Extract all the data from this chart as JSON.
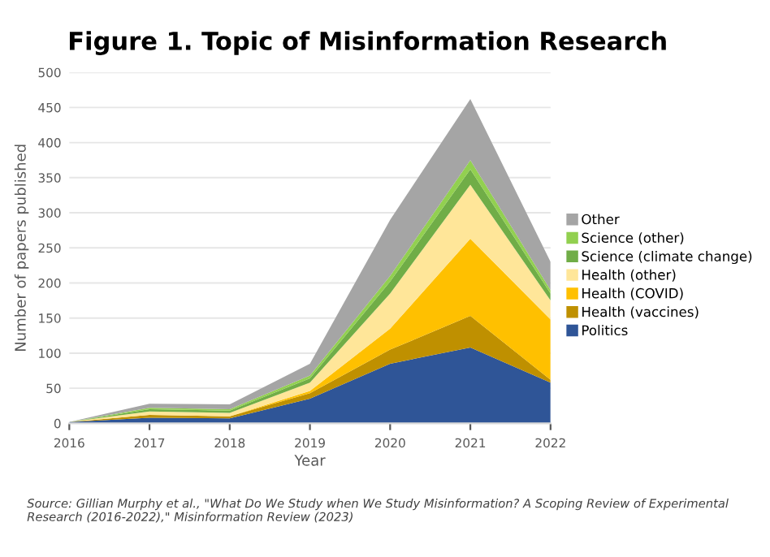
{
  "chart_data": {
    "type": "area",
    "stacked": true,
    "title": "Figure 1. Topic of Misinformation Research",
    "xlabel": "Year",
    "ylabel": "Number of papers published",
    "x": [
      2016,
      2017,
      2018,
      2019,
      2020,
      2021,
      2022
    ],
    "xlim": [
      2016,
      2022
    ],
    "xticks": [
      2016,
      2017,
      2018,
      2019,
      2020,
      2021,
      2022
    ],
    "ylim": [
      0,
      500
    ],
    "yticks": [
      0,
      50,
      100,
      150,
      200,
      250,
      300,
      350,
      400,
      450,
      500
    ],
    "grid": "y",
    "legend": "right",
    "series": [
      {
        "name": "Politics",
        "color": "#2f5597",
        "values": [
          2,
          8,
          7,
          35,
          85,
          108,
          58
        ]
      },
      {
        "name": "Health (vaccines)",
        "color": "#bf9000",
        "values": [
          0,
          4,
          3,
          8,
          20,
          45,
          4
        ]
      },
      {
        "name": "Health (COVID)",
        "color": "#ffc000",
        "values": [
          0,
          0,
          0,
          3,
          30,
          110,
          86
        ]
      },
      {
        "name": "Health (other)",
        "color": "#ffe699",
        "values": [
          0,
          5,
          5,
          12,
          50,
          77,
          27
        ]
      },
      {
        "name": "Science (climate change)",
        "color": "#70ad47",
        "values": [
          0,
          3,
          3,
          6,
          17,
          22,
          10
        ]
      },
      {
        "name": "Science (other)",
        "color": "#92d050",
        "values": [
          0,
          2,
          2,
          4,
          8,
          13,
          5
        ]
      },
      {
        "name": "Other",
        "color": "#a5a5a5",
        "values": [
          0,
          6,
          7,
          17,
          80,
          87,
          40
        ]
      }
    ],
    "annotations": [
      "Source: Gillian Murphy et al., \"What Do We Study when We Study Misinformation? A Scoping Review of Experimental Research (2016-2022),\" Misinformation Review (2023)"
    ]
  }
}
